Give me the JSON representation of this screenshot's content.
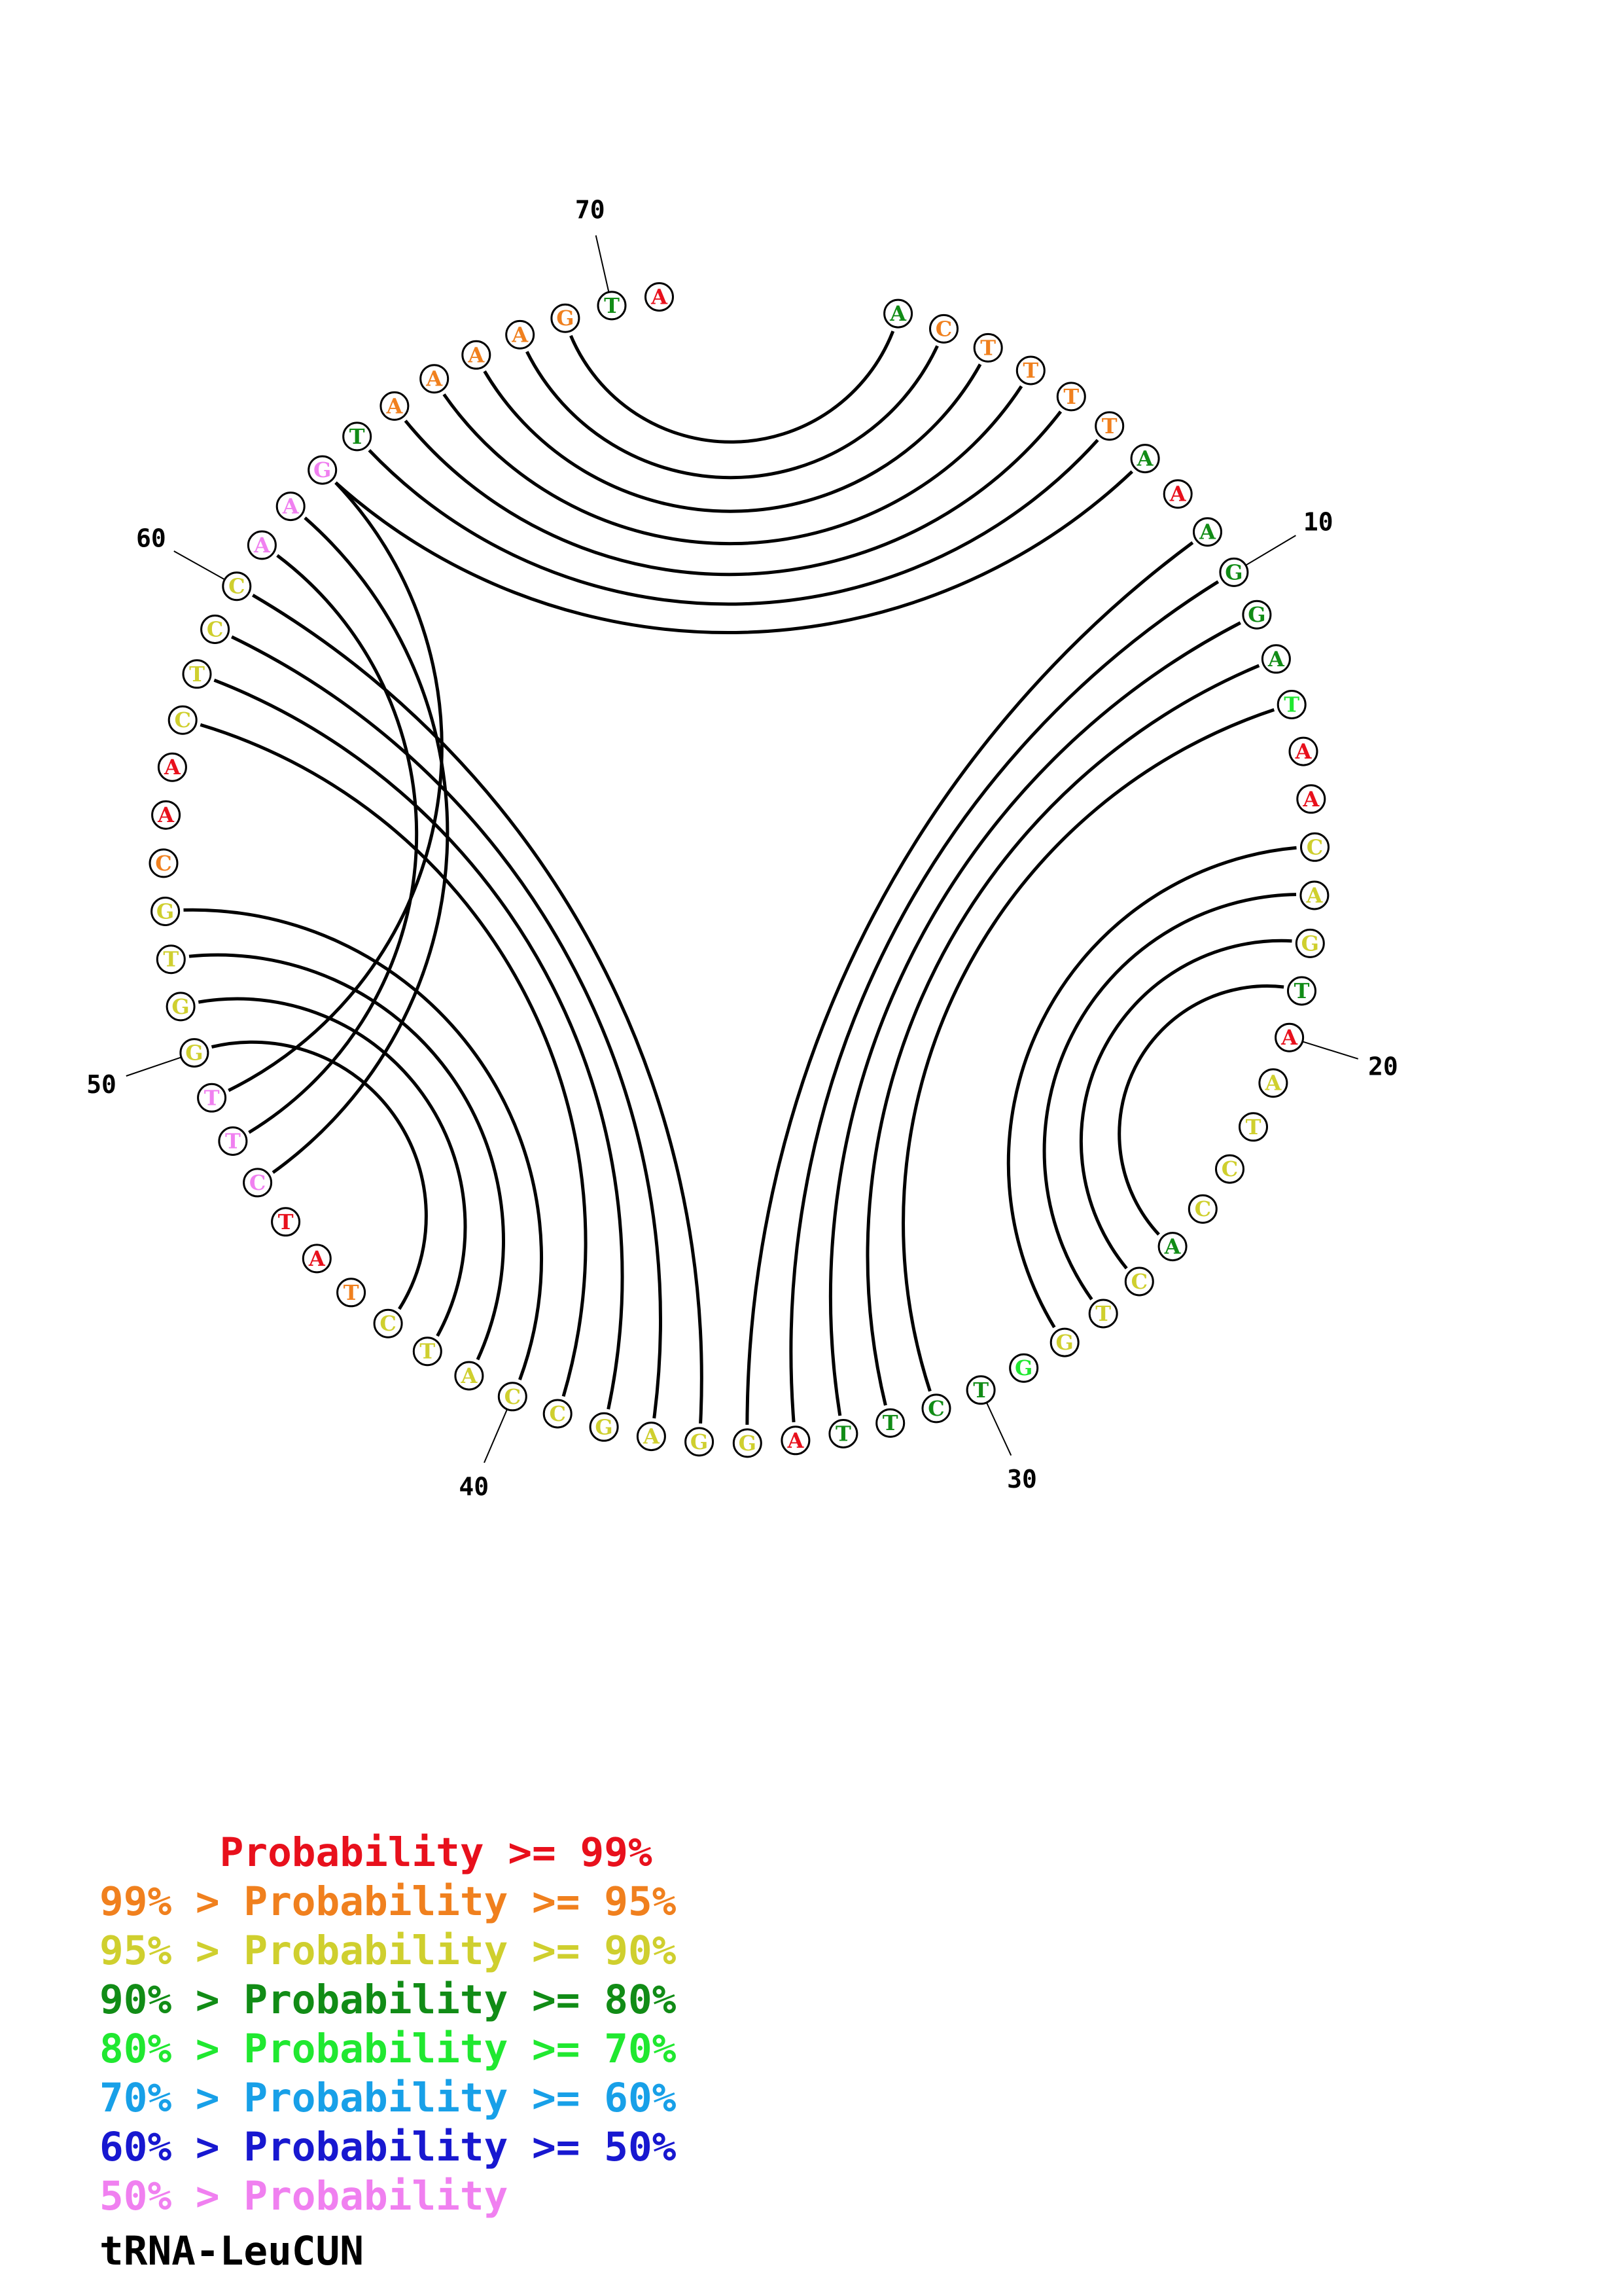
{
  "title": "tRNA-LeuCUN",
  "colors": {
    "p99": "#e8101c",
    "p95": "#f0801e",
    "p90": "#cfcf2e",
    "p80": "#118c16",
    "p70": "#20e830",
    "p60": "#18a0e8",
    "p50": "#1818d0",
    "plow": "#f080f0"
  },
  "legend": [
    {
      "text": "     Probability >= 99%",
      "color_key": "p99"
    },
    {
      "text": "99% > Probability >= 95%",
      "color_key": "p95"
    },
    {
      "text": "95% > Probability >= 90%",
      "color_key": "p90"
    },
    {
      "text": "90% > Probability >= 80%",
      "color_key": "p80"
    },
    {
      "text": "80% > Probability >= 70%",
      "color_key": "p70"
    },
    {
      "text": "70% > Probability >= 60%",
      "color_key": "p60"
    },
    {
      "text": "60% > Probability >= 50%",
      "color_key": "p50"
    },
    {
      "text": "50% > Probability",
      "color_key": "plow"
    }
  ],
  "sequence": [
    {
      "base": "A",
      "c": "p80"
    },
    {
      "base": "C",
      "c": "p95"
    },
    {
      "base": "T",
      "c": "p95"
    },
    {
      "base": "T",
      "c": "p95"
    },
    {
      "base": "T",
      "c": "p95"
    },
    {
      "base": "T",
      "c": "p95"
    },
    {
      "base": "A",
      "c": "p80"
    },
    {
      "base": "A",
      "c": "p99"
    },
    {
      "base": "A",
      "c": "p80"
    },
    {
      "base": "G",
      "c": "p80"
    },
    {
      "base": "G",
      "c": "p80"
    },
    {
      "base": "A",
      "c": "p80"
    },
    {
      "base": "T",
      "c": "p70"
    },
    {
      "base": "A",
      "c": "p99"
    },
    {
      "base": "A",
      "c": "p99"
    },
    {
      "base": "C",
      "c": "p90"
    },
    {
      "base": "A",
      "c": "p90"
    },
    {
      "base": "G",
      "c": "p90"
    },
    {
      "base": "T",
      "c": "p80"
    },
    {
      "base": "A",
      "c": "p99"
    },
    {
      "base": "A",
      "c": "p90"
    },
    {
      "base": "T",
      "c": "p90"
    },
    {
      "base": "C",
      "c": "p90"
    },
    {
      "base": "C",
      "c": "p90"
    },
    {
      "base": "A",
      "c": "p80"
    },
    {
      "base": "C",
      "c": "p90"
    },
    {
      "base": "T",
      "c": "p90"
    },
    {
      "base": "G",
      "c": "p90"
    },
    {
      "base": "G",
      "c": "p70"
    },
    {
      "base": "T",
      "c": "p80"
    },
    {
      "base": "C",
      "c": "p80"
    },
    {
      "base": "T",
      "c": "p80"
    },
    {
      "base": "T",
      "c": "p80"
    },
    {
      "base": "A",
      "c": "p99"
    },
    {
      "base": "G",
      "c": "p90"
    },
    {
      "base": "G",
      "c": "p90"
    },
    {
      "base": "A",
      "c": "p90"
    },
    {
      "base": "G",
      "c": "p90"
    },
    {
      "base": "C",
      "c": "p90"
    },
    {
      "base": "C",
      "c": "p90"
    },
    {
      "base": "A",
      "c": "p90"
    },
    {
      "base": "T",
      "c": "p90"
    },
    {
      "base": "C",
      "c": "p90"
    },
    {
      "base": "T",
      "c": "p95"
    },
    {
      "base": "A",
      "c": "p99"
    },
    {
      "base": "T",
      "c": "p99"
    },
    {
      "base": "C",
      "c": "plow"
    },
    {
      "base": "T",
      "c": "plow"
    },
    {
      "base": "T",
      "c": "plow"
    },
    {
      "base": "G",
      "c": "p90"
    },
    {
      "base": "G",
      "c": "p90"
    },
    {
      "base": "T",
      "c": "p90"
    },
    {
      "base": "G",
      "c": "p90"
    },
    {
      "base": "C",
      "c": "p95"
    },
    {
      "base": "A",
      "c": "p99"
    },
    {
      "base": "A",
      "c": "p99"
    },
    {
      "base": "C",
      "c": "p90"
    },
    {
      "base": "T",
      "c": "p90"
    },
    {
      "base": "C",
      "c": "p90"
    },
    {
      "base": "C",
      "c": "p90"
    },
    {
      "base": "A",
      "c": "plow"
    },
    {
      "base": "A",
      "c": "plow"
    },
    {
      "base": "G",
      "c": "plow"
    },
    {
      "base": "T",
      "c": "p80"
    },
    {
      "base": "A",
      "c": "p95"
    },
    {
      "base": "A",
      "c": "p95"
    },
    {
      "base": "A",
      "c": "p95"
    },
    {
      "base": "A",
      "c": "p95"
    },
    {
      "base": "G",
      "c": "p95"
    },
    {
      "base": "T",
      "c": "p80"
    },
    {
      "base": "A",
      "c": "p99"
    }
  ],
  "pairs": [
    [
      1,
      69
    ],
    [
      2,
      68
    ],
    [
      3,
      67
    ],
    [
      4,
      66
    ],
    [
      5,
      65
    ],
    [
      6,
      64
    ],
    [
      7,
      63
    ],
    [
      9,
      35
    ],
    [
      10,
      34
    ],
    [
      11,
      33
    ],
    [
      12,
      32
    ],
    [
      13,
      31
    ],
    [
      16,
      28
    ],
    [
      17,
      27
    ],
    [
      18,
      26
    ],
    [
      19,
      25
    ],
    [
      36,
      60
    ],
    [
      37,
      59
    ],
    [
      38,
      58
    ],
    [
      39,
      57
    ],
    [
      40,
      53
    ],
    [
      41,
      52
    ],
    [
      42,
      51
    ],
    [
      43,
      50
    ],
    [
      47,
      62
    ],
    [
      48,
      61
    ],
    [
      49,
      63
    ]
  ],
  "ticks": [
    "10",
    "20",
    "30",
    "40",
    "50",
    "60",
    "70"
  ]
}
